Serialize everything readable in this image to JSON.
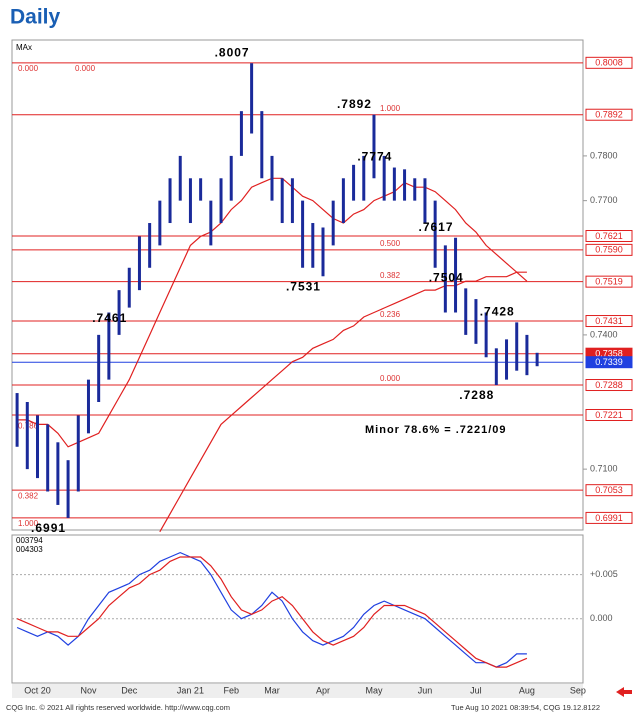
{
  "chart_data": {
    "type": "ohlc",
    "title": "Daily",
    "legend": "MAx",
    "categories": [
      null,
      null,
      "Oct 20",
      null,
      null,
      null,
      null,
      "Nov",
      null,
      null,
      null,
      "Dec",
      null,
      null,
      null,
      null,
      null,
      "Jan 21",
      null,
      null,
      null,
      "Feb",
      null,
      null,
      null,
      "Mar",
      null,
      null,
      null,
      null,
      "Apr",
      null,
      null,
      null,
      null,
      "May",
      null,
      null,
      null,
      null,
      "Jun",
      null,
      null,
      null,
      null,
      "Jul",
      null,
      null,
      null,
      null,
      "Aug",
      null,
      null,
      null,
      null,
      "Sep"
    ],
    "high": [
      0.727,
      0.725,
      0.722,
      0.72,
      0.716,
      0.712,
      0.722,
      0.73,
      0.74,
      0.745,
      0.75,
      0.755,
      0.762,
      0.765,
      0.77,
      0.775,
      0.78,
      0.775,
      0.775,
      0.77,
      0.775,
      0.78,
      0.79,
      0.8007,
      0.79,
      0.78,
      0.775,
      0.775,
      0.77,
      0.765,
      0.764,
      0.77,
      0.775,
      0.778,
      0.78,
      0.7892,
      0.78,
      0.7774,
      0.777,
      0.775,
      0.775,
      0.77,
      0.76,
      0.7617,
      0.7504,
      0.748,
      0.745,
      0.737,
      0.739,
      0.7428,
      0.74,
      0.736,
      null,
      null,
      null,
      null
    ],
    "low": [
      0.715,
      0.71,
      0.708,
      0.705,
      0.702,
      0.6991,
      0.705,
      0.718,
      0.725,
      0.73,
      0.74,
      0.7461,
      0.75,
      0.755,
      0.76,
      0.765,
      0.77,
      0.765,
      0.77,
      0.76,
      0.765,
      0.77,
      0.78,
      0.785,
      0.775,
      0.77,
      0.765,
      0.765,
      0.755,
      0.755,
      0.7531,
      0.76,
      0.765,
      0.77,
      0.77,
      0.775,
      0.77,
      0.77,
      0.77,
      0.77,
      0.765,
      0.755,
      0.745,
      0.745,
      0.74,
      0.738,
      0.735,
      0.7288,
      0.73,
      0.732,
      0.731,
      0.733,
      null,
      null,
      null,
      null
    ],
    "color": "#1a2a9a",
    "series": [
      {
        "color": "#e02020",
        "values": [
          0.721,
          0.721,
          0.72,
          0.72,
          0.718,
          0.715,
          0.716,
          0.717,
          0.718,
          0.722,
          0.726,
          0.73,
          0.735,
          0.74,
          0.745,
          0.75,
          0.755,
          0.76,
          0.762,
          0.763,
          0.765,
          0.768,
          0.77,
          0.773,
          0.774,
          0.775,
          0.775,
          0.773,
          0.771,
          0.77,
          0.768,
          0.766,
          0.765,
          0.767,
          0.768,
          0.77,
          0.771,
          0.772,
          0.774,
          0.773,
          0.773,
          0.772,
          0.77,
          0.768,
          0.765,
          0.763,
          0.76,
          0.758,
          0.756,
          0.754,
          0.752,
          null,
          null,
          null,
          null,
          null
        ]
      },
      {
        "color": "#e02020",
        "values": [
          null,
          null,
          null,
          null,
          null,
          null,
          null,
          null,
          null,
          null,
          null,
          null,
          null,
          null,
          0.696,
          0.7,
          0.704,
          0.708,
          0.712,
          0.716,
          0.72,
          0.722,
          0.724,
          0.726,
          0.728,
          0.73,
          0.732,
          0.734,
          0.735,
          0.737,
          0.738,
          0.739,
          0.741,
          0.742,
          0.744,
          0.745,
          0.746,
          0.747,
          0.748,
          0.749,
          0.75,
          0.75,
          0.751,
          0.751,
          0.752,
          0.752,
          0.753,
          0.753,
          0.753,
          0.754,
          0.754,
          null,
          null,
          null,
          null,
          null
        ]
      }
    ],
    "ylim": [
      0.6964,
      0.8059
    ],
    "yticks": [
      {
        "value": 0.78,
        "label": "0.7800"
      },
      {
        "value": 0.77,
        "label": "0.7700"
      },
      {
        "value": 0.74,
        "label": "0.7400"
      },
      {
        "value": 0.71,
        "label": "0.7100"
      }
    ],
    "levels": [
      {
        "value": 0.8008,
        "label": "0.8008",
        "color": "#e02020",
        "filled": false
      },
      {
        "value": 0.7892,
        "label": "0.7892",
        "color": "#e02020",
        "filled": false
      },
      {
        "value": 0.7621,
        "label": "0.7621",
        "color": "#e02020",
        "filled": false
      },
      {
        "value": 0.759,
        "label": "0.7590",
        "color": "#e02020",
        "filled": false
      },
      {
        "value": 0.7519,
        "label": "0.7519",
        "color": "#e02020",
        "filled": false
      },
      {
        "value": 0.7431,
        "label": "0.7431",
        "color": "#e02020",
        "filled": false
      },
      {
        "value": 0.7358,
        "label": "0.7358",
        "color": "#e02020",
        "filled": true
      },
      {
        "value": 0.7339,
        "label": "0.7339",
        "color": "#2040e0",
        "filled": true
      },
      {
        "value": 0.7288,
        "label": "0.7288",
        "color": "#e02020",
        "filled": false
      },
      {
        "value": 0.7221,
        "label": "0.7221",
        "color": "#e02020",
        "filled": false
      },
      {
        "value": 0.7053,
        "label": "0.7053",
        "color": "#e02020",
        "filled": false
      },
      {
        "value": 0.6991,
        "label": "0.6991",
        "color": "#e02020",
        "filled": false
      }
    ],
    "fib_right": [
      {
        "value": 0.7892,
        "label": "1.000"
      },
      {
        "value": 0.759,
        "label": "0.500"
      },
      {
        "value": 0.7519,
        "label": "0.382"
      },
      {
        "value": 0.7431,
        "label": "0.236"
      },
      {
        "value": 0.7288,
        "label": "0.000"
      }
    ],
    "fib_left": [
      {
        "value": 0.8008,
        "labels": [
          "0.000",
          "0.000"
        ]
      },
      {
        "value": 0.7209,
        "labels": [
          "0.786"
        ]
      },
      {
        "value": 0.7053,
        "labels": [
          "0.382"
        ]
      },
      {
        "value": 0.6991,
        "labels": [
          "1.000"
        ]
      }
    ],
    "annotations": [
      {
        "text": ".8007",
        "value": 0.8007
      },
      {
        "text": ".7892",
        "value": 0.7892
      },
      {
        "text": ".7774",
        "value": 0.7774
      },
      {
        "text": ".7617",
        "value": 0.7617
      },
      {
        "text": ".7504",
        "value": 0.7504
      },
      {
        "text": ".7428",
        "value": 0.7428
      },
      {
        "text": ".7288",
        "value": 0.7288
      },
      {
        "text": ".7461",
        "value": 0.7461
      },
      {
        "text": ".7531",
        "value": 0.7531
      },
      {
        "text": ".6991",
        "value": 0.6991
      }
    ],
    "note": "Minor 78.6% = .7221/09",
    "oscillator": {
      "legend": [
        "003794",
        "004303"
      ],
      "series": [
        {
          "color": "#2040e0",
          "values": [
            -0.001,
            -0.0015,
            -0.002,
            -0.0015,
            -0.002,
            -0.003,
            -0.002,
            0,
            0.0015,
            0.003,
            0.0035,
            0.004,
            0.005,
            0.0055,
            0.0065,
            0.007,
            0.0075,
            0.007,
            0.0065,
            0.005,
            0.003,
            0.001,
            0,
            0.0005,
            0.0015,
            0.003,
            0.002,
            0,
            -0.0015,
            -0.0025,
            -0.003,
            -0.0025,
            -0.002,
            -0.001,
            0.0005,
            0.0015,
            0.002,
            0.0015,
            0.001,
            0.0005,
            0,
            -0.001,
            -0.002,
            -0.003,
            -0.004,
            -0.005,
            -0.005,
            -0.0055,
            -0.005,
            -0.004,
            -0.004,
            null,
            null,
            null,
            null,
            null
          ]
        },
        {
          "color": "#e02020",
          "values": [
            0,
            -0.0005,
            -0.001,
            -0.0015,
            -0.0015,
            -0.002,
            -0.002,
            -0.001,
            0,
            0.0015,
            0.0025,
            0.0035,
            0.004,
            0.005,
            0.0055,
            0.0065,
            0.007,
            0.007,
            0.007,
            0.006,
            0.0045,
            0.0025,
            0.001,
            0.0005,
            0.001,
            0.002,
            0.0025,
            0.0015,
            0,
            -0.0015,
            -0.0025,
            -0.003,
            -0.0025,
            -0.002,
            -0.001,
            0.0005,
            0.0015,
            0.0015,
            0.0015,
            0.001,
            0.0005,
            -0.0005,
            -0.0015,
            -0.0025,
            -0.0035,
            -0.0045,
            -0.005,
            -0.0055,
            -0.0055,
            -0.005,
            -0.0045,
            null,
            null,
            null,
            null,
            null
          ]
        }
      ],
      "ylim": [
        -0.0073,
        0.0095
      ],
      "yticks": [
        {
          "value": 0.005,
          "label": "+0.005"
        },
        {
          "value": 0,
          "label": "0.000"
        }
      ]
    },
    "footer_left": "CQG Inc. © 2021 All rights reserved worldwide. http://www.cqg.com",
    "footer_right": "Tue Aug 10 2021 08:39:54, CQG 19.12.8122"
  }
}
